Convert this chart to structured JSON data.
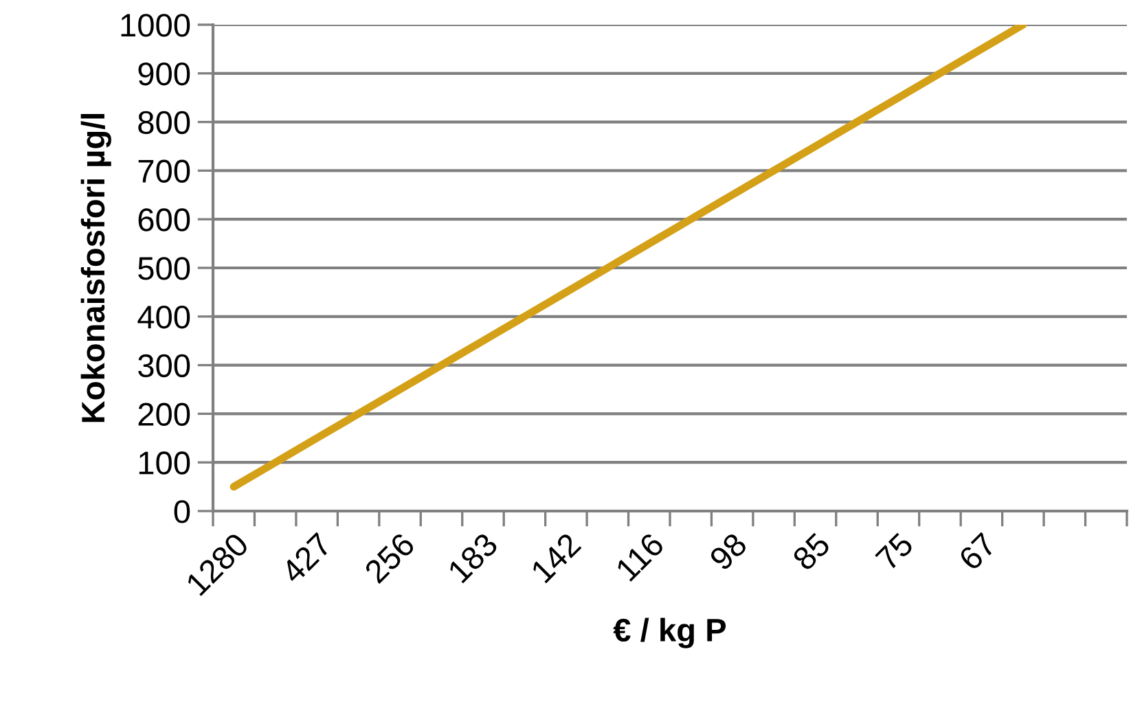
{
  "chart_data": {
    "type": "line",
    "xlabel": "€ / kg P",
    "ylabel": "Kokonaisfosfori µg/l",
    "categories": [
      "1280",
      null,
      "427",
      null,
      "256",
      null,
      "183",
      null,
      "142",
      null,
      "116",
      null,
      "98",
      null,
      "85",
      null,
      "75",
      null,
      "67",
      null,
      null,
      null
    ],
    "series": [
      {
        "color": "#d4a017",
        "values": [
          50,
          100,
          150,
          200,
          250,
          300,
          350,
          400,
          450,
          500,
          550,
          600,
          650,
          700,
          750,
          800,
          850,
          900,
          950,
          1000,
          null,
          null
        ]
      }
    ],
    "ylim": [
      0,
      1000
    ],
    "yticks": [
      0,
      100,
      200,
      300,
      400,
      500,
      600,
      700,
      800,
      900,
      1000
    ],
    "grid": "y",
    "marker": "none",
    "line_style": "solid"
  }
}
